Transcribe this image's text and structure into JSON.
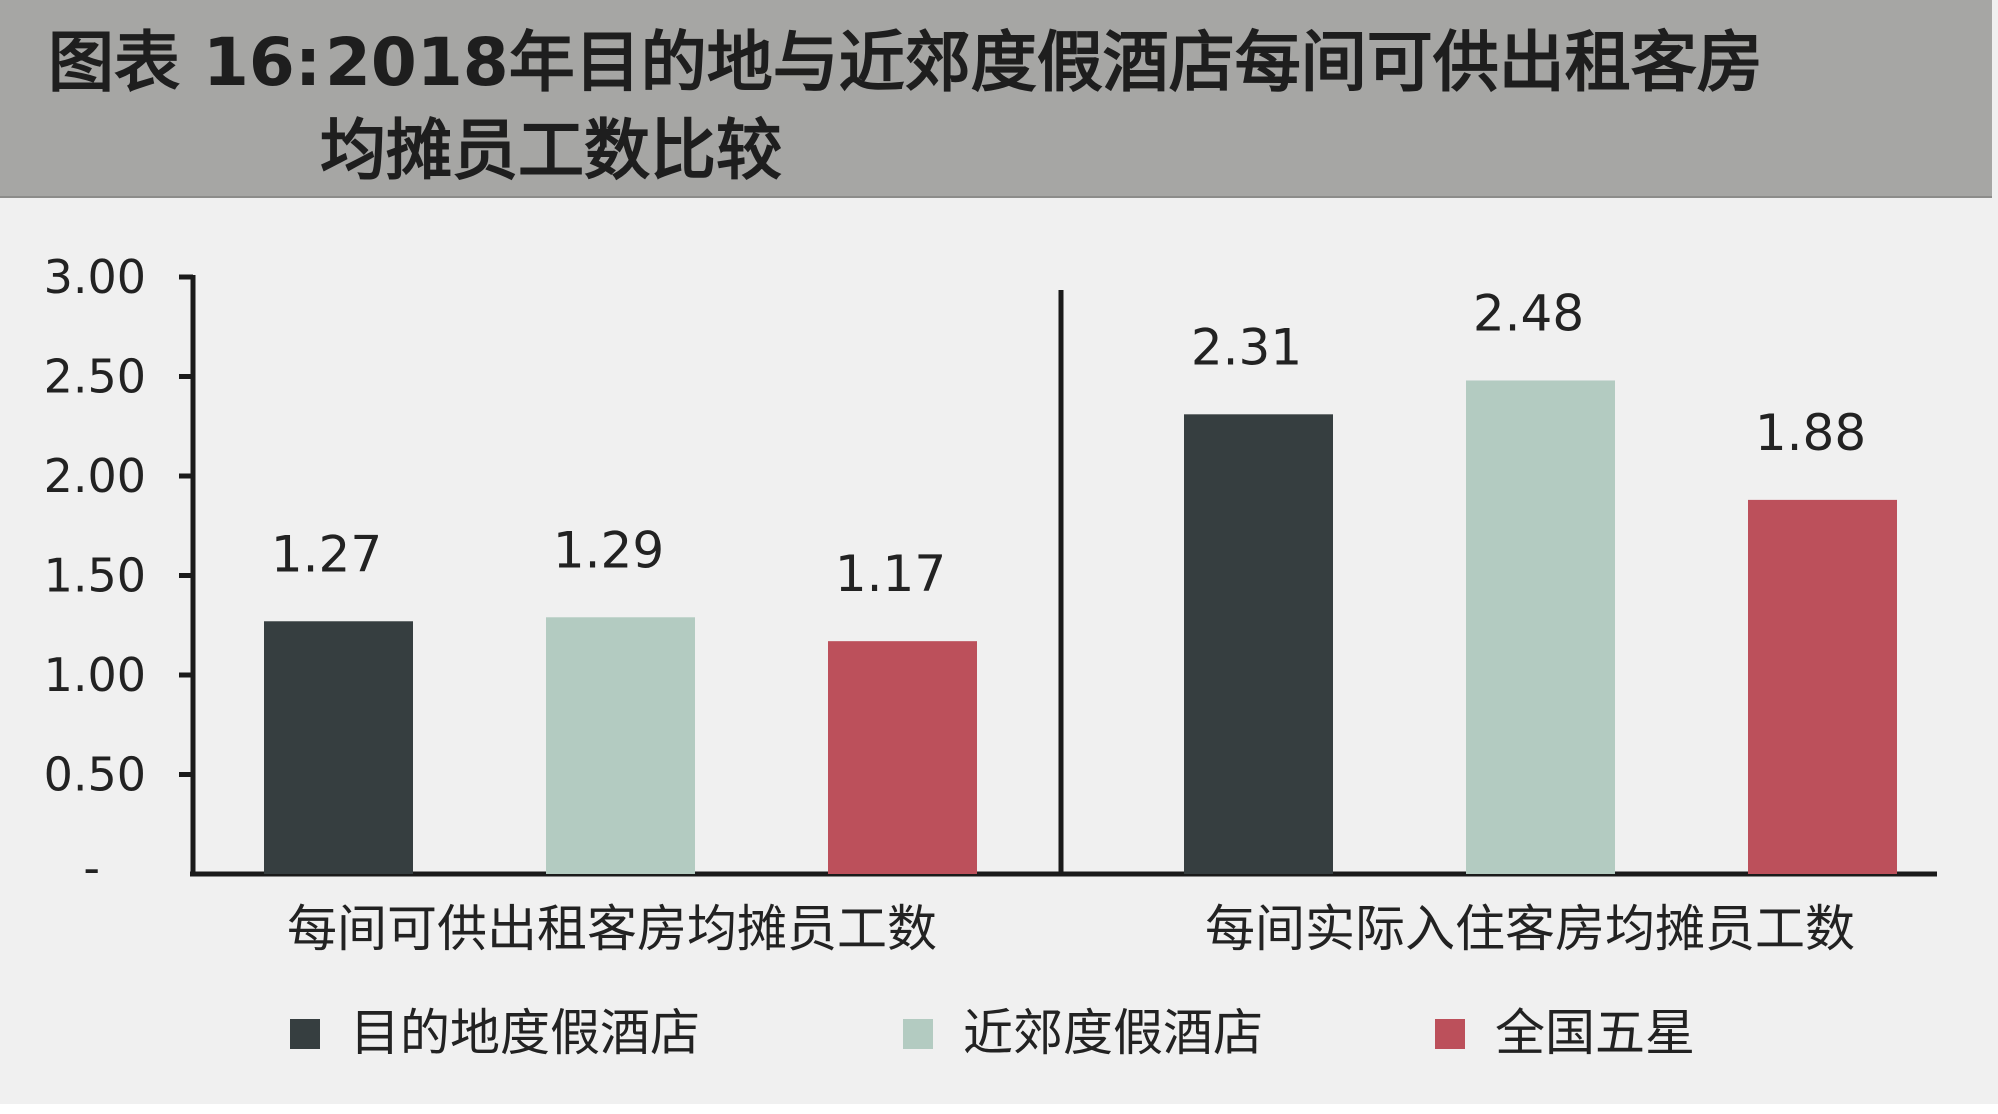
{
  "title": {
    "prefix": "图表 16:",
    "line1": "2018年目的地与近郊度假酒店每间可供出租客房",
    "line2": "均摊员工数比较"
  },
  "chart_data": {
    "type": "bar",
    "categories": [
      "每间可供出租客房均摊员工数",
      "每间实际入住客房均摊员工数"
    ],
    "series": [
      {
        "name": "目的地度假酒店",
        "values": [
          1.27,
          2.31
        ],
        "labels": [
          "1.27",
          "2.31"
        ],
        "color": "#363e40"
      },
      {
        "name": "近郊度假酒店",
        "values": [
          1.29,
          2.48
        ],
        "labels": [
          "1.29",
          "2.48"
        ],
        "color": "#b3cbc1"
      },
      {
        "name": "全国五星",
        "values": [
          1.17,
          1.88
        ],
        "labels": [
          "1.17",
          "1.88"
        ],
        "color": "#bc505b"
      }
    ],
    "ylim": [
      0,
      3.0
    ],
    "yticks": [
      0,
      0.5,
      1.0,
      1.5,
      2.0,
      2.5,
      3.0
    ],
    "ytick_labels": [
      "-",
      "0.50",
      "1.00",
      "1.50",
      "2.00",
      "2.50",
      "3.00"
    ],
    "xlabel": "",
    "ylabel": "",
    "grid": false,
    "legend_position": "bottom",
    "group_separator": true
  },
  "colors": {
    "title_bar": "#a6a6a4",
    "background": "#f0f0f0",
    "axis": "#1a1a1a"
  }
}
